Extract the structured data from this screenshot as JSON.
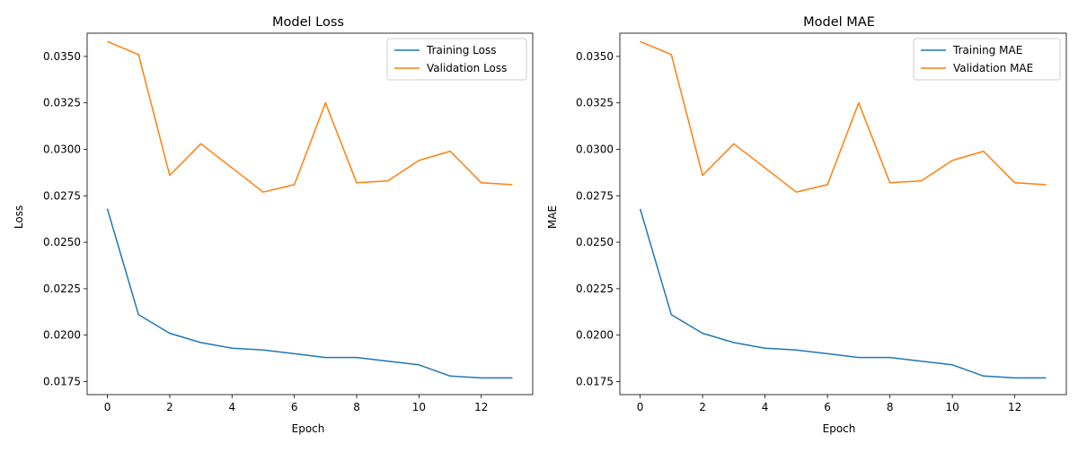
{
  "chart_data": [
    {
      "type": "line",
      "title": "Model Loss",
      "xlabel": "Epoch",
      "ylabel": "Loss",
      "xlim": [
        -0.65,
        13.65
      ],
      "ylim": [
        0.0168,
        0.03625
      ],
      "xticks": [
        0,
        2,
        4,
        6,
        8,
        10,
        12
      ],
      "yticks": [
        0.0175,
        0.02,
        0.0225,
        0.025,
        0.0275,
        0.03,
        0.0325,
        0.035
      ],
      "ytick_labels": [
        "0.0175",
        "0.0200",
        "0.0225",
        "0.0250",
        "0.0275",
        "0.0300",
        "0.0325",
        "0.0350"
      ],
      "grid": false,
      "legend_position": "top-right",
      "x": [
        0,
        1,
        2,
        3,
        4,
        5,
        6,
        7,
        8,
        9,
        10,
        11,
        12,
        13
      ],
      "series": [
        {
          "name": "Training Loss",
          "color": "#1f77b4",
          "values": [
            0.0268,
            0.0211,
            0.0201,
            0.0196,
            0.0193,
            0.0192,
            0.019,
            0.0188,
            0.0188,
            0.0186,
            0.0184,
            0.0178,
            0.0177,
            0.0177
          ]
        },
        {
          "name": "Validation Loss",
          "color": "#ff7f0e",
          "values": [
            0.0358,
            0.0351,
            0.0286,
            0.0303,
            0.029,
            0.0277,
            0.0281,
            0.0325,
            0.0282,
            0.0283,
            0.0294,
            0.0299,
            0.0282,
            0.0281
          ]
        }
      ]
    },
    {
      "type": "line",
      "title": "Model MAE",
      "xlabel": "Epoch",
      "ylabel": "MAE",
      "xlim": [
        -0.65,
        13.65
      ],
      "ylim": [
        0.0168,
        0.03625
      ],
      "xticks": [
        0,
        2,
        4,
        6,
        8,
        10,
        12
      ],
      "yticks": [
        0.0175,
        0.02,
        0.0225,
        0.025,
        0.0275,
        0.03,
        0.0325,
        0.035
      ],
      "ytick_labels": [
        "0.0175",
        "0.0200",
        "0.0225",
        "0.0250",
        "0.0275",
        "0.0300",
        "0.0325",
        "0.0350"
      ],
      "grid": false,
      "legend_position": "top-right",
      "x": [
        0,
        1,
        2,
        3,
        4,
        5,
        6,
        7,
        8,
        9,
        10,
        11,
        12,
        13
      ],
      "series": [
        {
          "name": "Training MAE",
          "color": "#1f77b4",
          "values": [
            0.0268,
            0.0211,
            0.0201,
            0.0196,
            0.0193,
            0.0192,
            0.019,
            0.0188,
            0.0188,
            0.0186,
            0.0184,
            0.0178,
            0.0177,
            0.0177
          ]
        },
        {
          "name": "Validation MAE",
          "color": "#ff7f0e",
          "values": [
            0.0358,
            0.0351,
            0.0286,
            0.0303,
            0.029,
            0.0277,
            0.0281,
            0.0325,
            0.0282,
            0.0283,
            0.0294,
            0.0299,
            0.0282,
            0.0281
          ]
        }
      ]
    }
  ]
}
